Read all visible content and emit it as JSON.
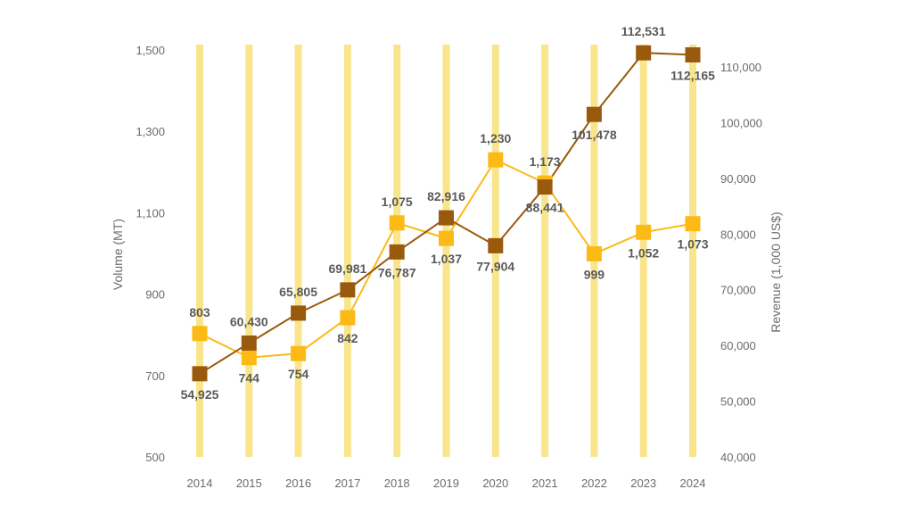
{
  "chart_data": {
    "type": "line",
    "categories": [
      "2014",
      "2015",
      "2016",
      "2017",
      "2018",
      "2019",
      "2020",
      "2021",
      "2022",
      "2023",
      "2024"
    ],
    "series": [
      {
        "axis": "left",
        "color": "#fbba16",
        "values": [
          803,
          744,
          754,
          842,
          1075,
          1037,
          1230,
          1173,
          999,
          1052,
          1073
        ],
        "labels": [
          "803",
          "744",
          "754",
          "842",
          "1,075",
          "1,037",
          "1,230",
          "1,173",
          "999",
          "1,052",
          "1,073"
        ]
      },
      {
        "axis": "right",
        "color": "#9a5a0e",
        "values": [
          54925,
          60430,
          65805,
          69981,
          76787,
          82916,
          77904,
          88441,
          101478,
          112531,
          112165
        ],
        "labels": [
          "54,925",
          "60,430",
          "65,805",
          "69,981",
          "76,787",
          "82,916",
          "77,904",
          "88,441",
          "101,478",
          "112,531",
          "112,165"
        ]
      }
    ],
    "ylabel_left": "Volume (MT)",
    "ylabel_right": "Revenue (1,000 US$)",
    "ylim_left": [
      500,
      1500
    ],
    "ylim_right": [
      40000,
      110000
    ],
    "yticks_left": [
      "500",
      "700",
      "900",
      "1,100",
      "1,300",
      "1,500"
    ],
    "yticks_right": [
      "40,000",
      "50,000",
      "60,000",
      "70,000",
      "80,000",
      "90,000",
      "100,000",
      "110,000"
    ],
    "column_band_color": "#f8e58c",
    "grid": false
  }
}
